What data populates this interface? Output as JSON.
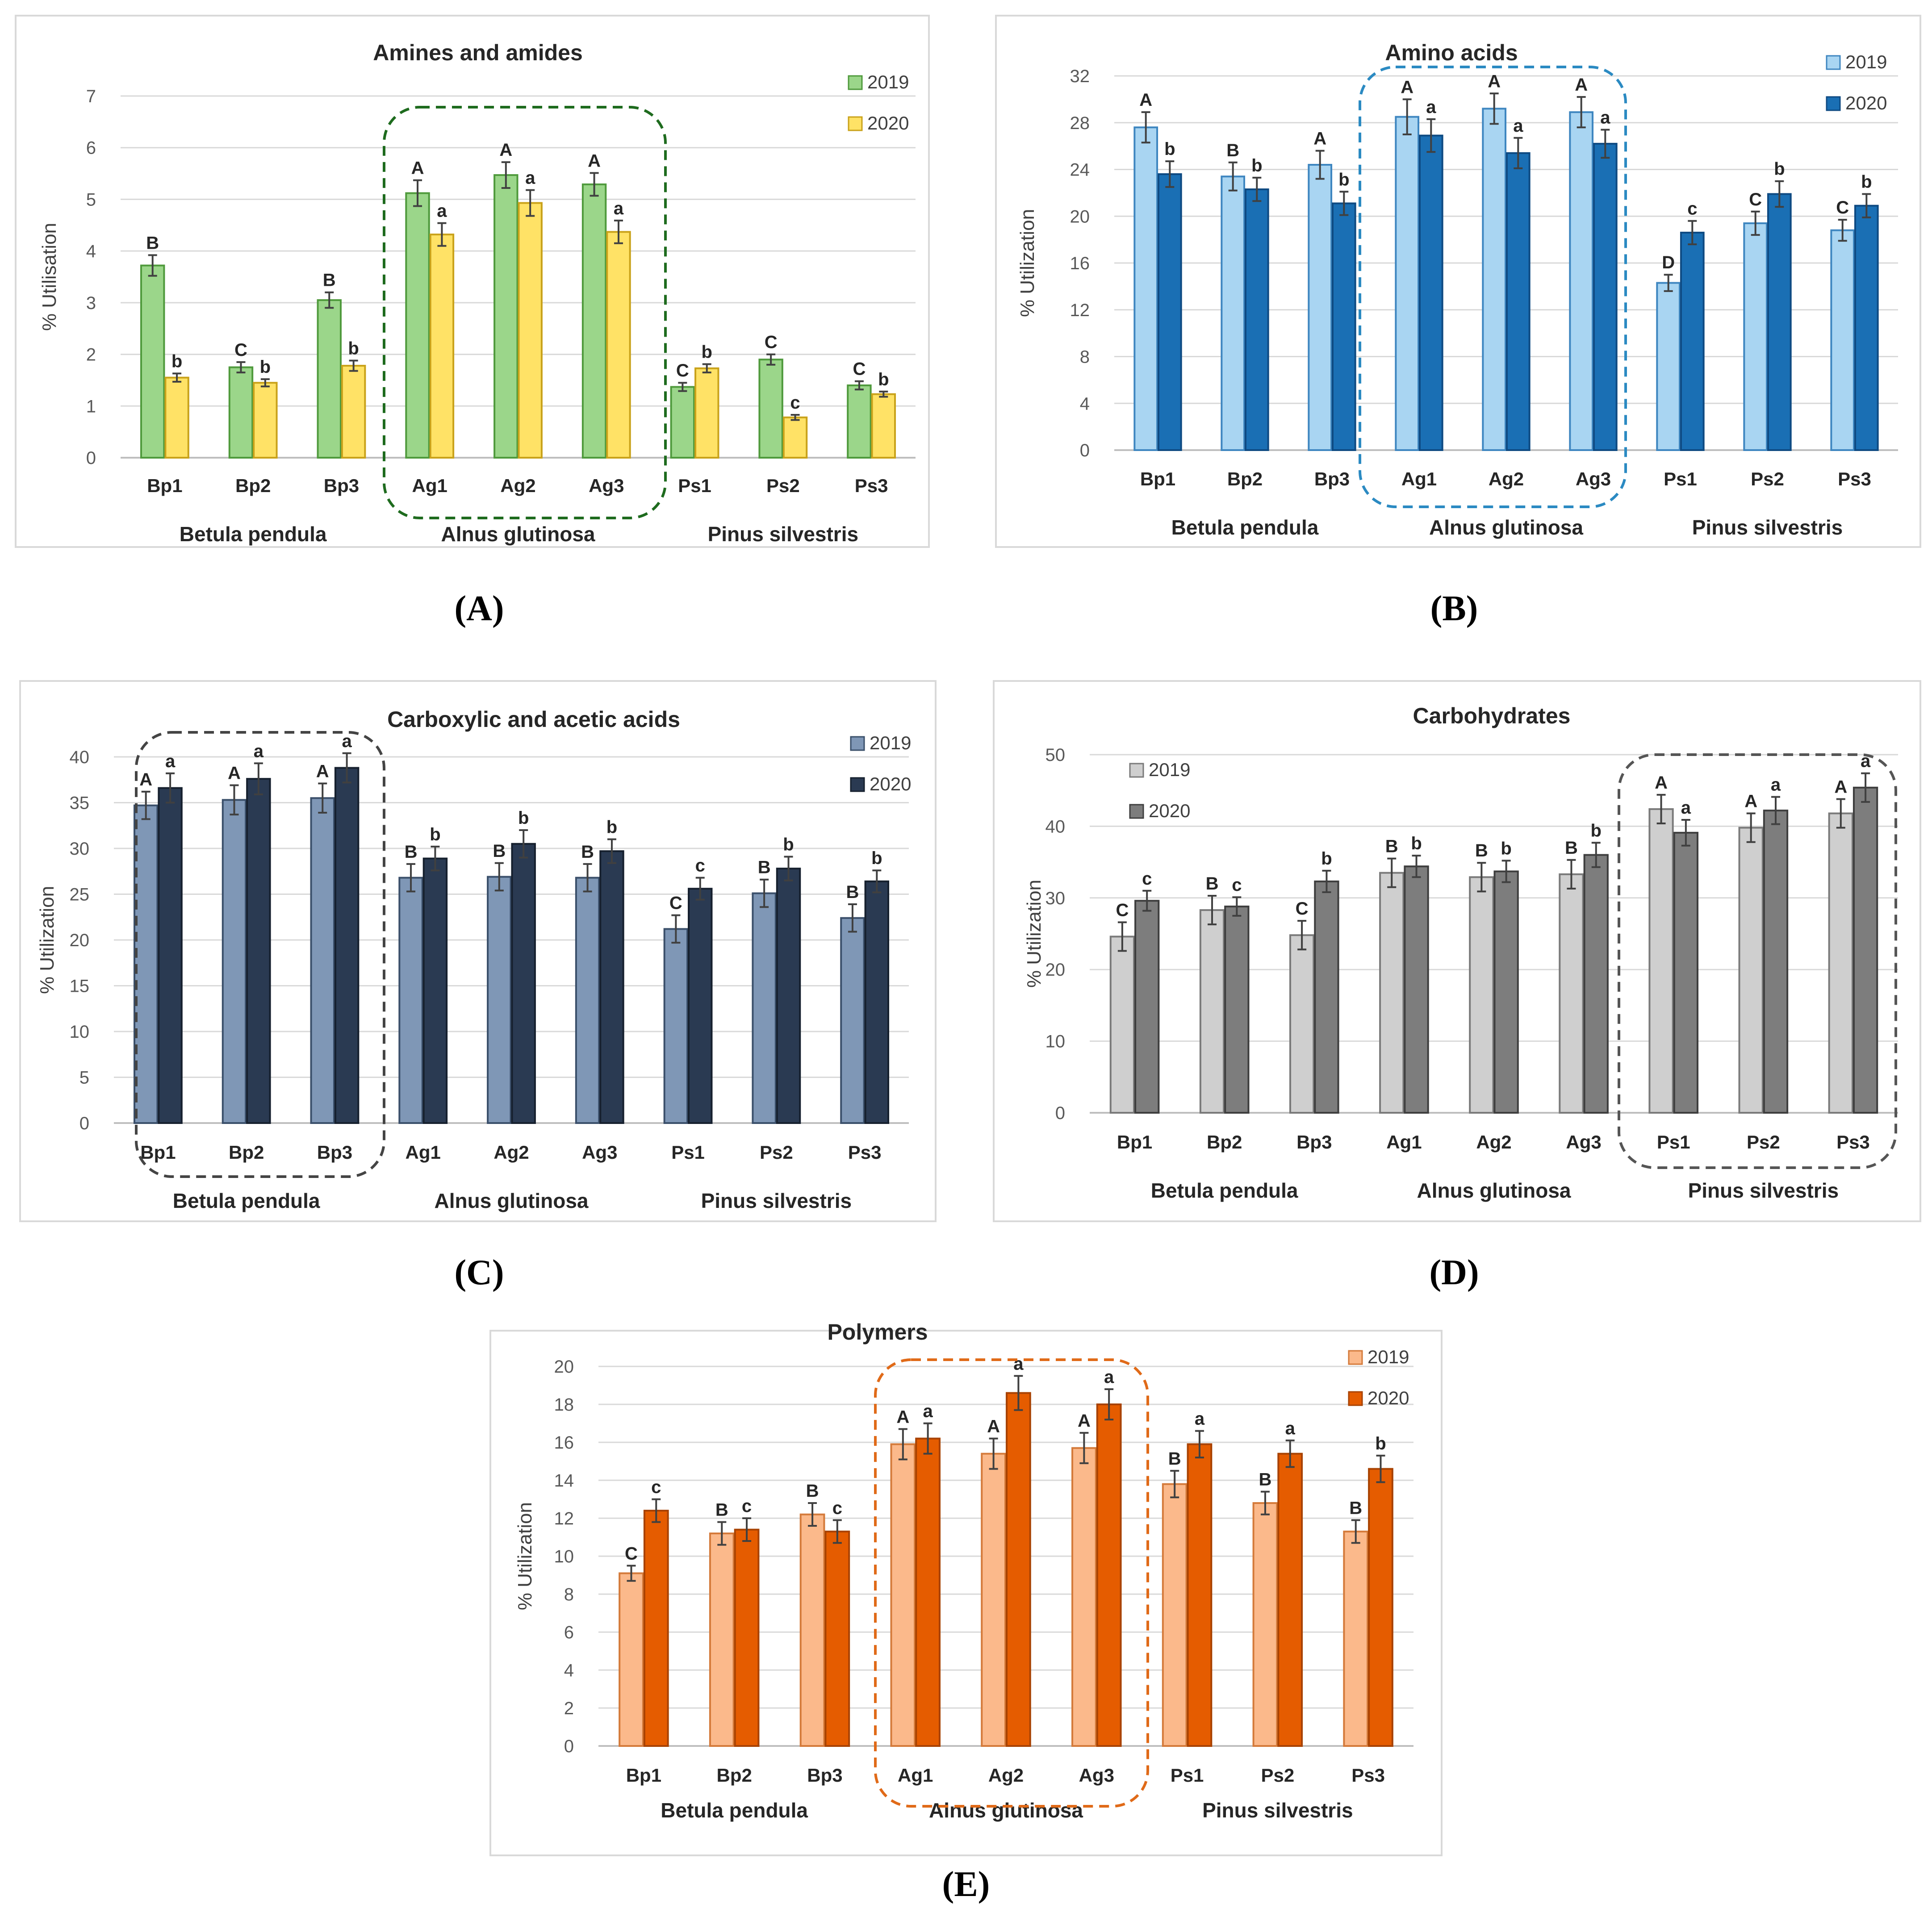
{
  "figure": {
    "panel_labels": [
      "(A)",
      "(B)",
      "(C)",
      "(D)",
      "(E)"
    ]
  },
  "chart_data": [
    {
      "id": "A",
      "type": "bar",
      "title": "Amines and amides",
      "ylabel": "% Utilisation",
      "xlabel": "",
      "ylim": [
        0,
        7
      ],
      "yticks": [
        0,
        1,
        2,
        3,
        4,
        5,
        6,
        7
      ],
      "categories": [
        "Bp1",
        "Bp2",
        "Bp3",
        "Ag1",
        "Ag2",
        "Ag3",
        "Ps1",
        "Ps2",
        "Ps3"
      ],
      "groups": [
        "Betula pendula",
        "Alnus glutinosa",
        "Pinus silvestris"
      ],
      "highlight_group": "Alnus glutinosa",
      "highlight_color": "#1e6b1e",
      "legend_position": "top-right",
      "series": [
        {
          "name": "2019",
          "color": "#9bd68a",
          "edge": "#4f9a3c",
          "values": [
            3.72,
            1.75,
            3.05,
            5.12,
            5.47,
            5.29,
            1.37,
            1.9,
            1.4
          ],
          "errors": [
            0.2,
            0.1,
            0.15,
            0.25,
            0.25,
            0.22,
            0.08,
            0.1,
            0.08
          ],
          "letters": [
            "B",
            "C",
            "B",
            "A",
            "A",
            "A",
            "C",
            "C",
            "C"
          ]
        },
        {
          "name": "2020",
          "color": "#ffe266",
          "edge": "#c9a21a",
          "values": [
            1.55,
            1.45,
            1.78,
            4.32,
            4.93,
            4.37,
            1.73,
            0.78,
            1.23
          ],
          "errors": [
            0.08,
            0.07,
            0.1,
            0.22,
            0.25,
            0.22,
            0.08,
            0.05,
            0.05
          ],
          "letters": [
            "b",
            "b",
            "b",
            "a",
            "a",
            "a",
            "b",
            "c",
            "b"
          ]
        }
      ]
    },
    {
      "id": "B",
      "type": "bar",
      "title": "Amino acids",
      "ylabel": "% Utilization",
      "xlabel": "",
      "ylim": [
        0,
        32
      ],
      "yticks": [
        0,
        4,
        8,
        12,
        16,
        20,
        24,
        28,
        32
      ],
      "categories": [
        "Bp1",
        "Bp2",
        "Bp3",
        "Ag1",
        "Ag2",
        "Ag3",
        "Ps1",
        "Ps2",
        "Ps3"
      ],
      "groups": [
        "Betula pendula",
        "Alnus glutinosa",
        "Pinus silvestris"
      ],
      "highlight_group": "Alnus glutinosa",
      "highlight_color": "#2b8ac2",
      "legend_position": "top-right",
      "series": [
        {
          "name": "2019",
          "color": "#a9d5f2",
          "edge": "#3e86c0",
          "values": [
            27.6,
            23.4,
            24.4,
            28.5,
            29.2,
            28.9,
            14.3,
            19.4,
            18.8
          ],
          "errors": [
            1.3,
            1.2,
            1.2,
            1.5,
            1.3,
            1.3,
            0.7,
            1.0,
            0.9
          ],
          "letters": [
            "A",
            "B",
            "A",
            "A",
            "A",
            "A",
            "D",
            "C",
            "C"
          ]
        },
        {
          "name": "2020",
          "color": "#1a6fb4",
          "edge": "#0e4a82",
          "values": [
            23.6,
            22.3,
            21.1,
            26.9,
            25.4,
            26.2,
            18.6,
            21.9,
            20.9
          ],
          "errors": [
            1.1,
            1.0,
            1.0,
            1.4,
            1.3,
            1.2,
            1.0,
            1.1,
            1.0
          ],
          "letters": [
            "b",
            "b",
            "b",
            "a",
            "a",
            "a",
            "c",
            "b",
            "b"
          ]
        }
      ]
    },
    {
      "id": "C",
      "type": "bar",
      "title": "Carboxylic and acetic acids",
      "ylabel": "% Utilization",
      "xlabel": "",
      "ylim": [
        0,
        40
      ],
      "yticks": [
        0,
        5,
        10,
        15,
        20,
        25,
        30,
        35,
        40
      ],
      "categories": [
        "Bp1",
        "Bp2",
        "Bp3",
        "Ag1",
        "Ag2",
        "Ag3",
        "Ps1",
        "Ps2",
        "Ps3"
      ],
      "groups": [
        "Betula pendula",
        "Alnus glutinosa",
        "Pinus silvestris"
      ],
      "highlight_group": "Betula pendula",
      "highlight_color": "#444444",
      "legend_position": "top-right",
      "series": [
        {
          "name": "2019",
          "color": "#7f97b6",
          "edge": "#3a4f6a",
          "values": [
            34.7,
            35.3,
            35.5,
            26.8,
            26.9,
            26.8,
            21.2,
            25.1,
            22.4
          ],
          "errors": [
            1.5,
            1.6,
            1.6,
            1.5,
            1.5,
            1.5,
            1.5,
            1.5,
            1.5
          ],
          "letters": [
            "A",
            "A",
            "A",
            "B",
            "B",
            "B",
            "C",
            "B",
            "B"
          ]
        },
        {
          "name": "2020",
          "color": "#2a3a52",
          "edge": "#16202e",
          "values": [
            36.6,
            37.6,
            38.8,
            28.9,
            30.5,
            29.7,
            25.6,
            27.8,
            26.4
          ],
          "errors": [
            1.6,
            1.7,
            1.6,
            1.3,
            1.5,
            1.3,
            1.2,
            1.3,
            1.2
          ],
          "letters": [
            "a",
            "a",
            "a",
            "b",
            "b",
            "b",
            "c",
            "b",
            "b"
          ]
        }
      ]
    },
    {
      "id": "D",
      "type": "bar",
      "title": "Carbohydrates",
      "ylabel": "% Utilization",
      "xlabel": "",
      "ylim": [
        0,
        50
      ],
      "yticks": [
        0,
        10,
        20,
        30,
        40,
        50
      ],
      "categories": [
        "Bp1",
        "Bp2",
        "Bp3",
        "Ag1",
        "Ag2",
        "Ag3",
        "Ps1",
        "Ps2",
        "Ps3"
      ],
      "groups": [
        "Betula pendula",
        "Alnus glutinosa",
        "Pinus silvestris"
      ],
      "highlight_group": "Pinus silvestris",
      "highlight_color": "#555555",
      "legend_position": "top-left",
      "series": [
        {
          "name": "2019",
          "color": "#cfcfcf",
          "edge": "#7a7a7a",
          "values": [
            24.6,
            28.3,
            24.8,
            33.5,
            32.9,
            33.3,
            42.4,
            39.8,
            41.8
          ],
          "errors": [
            2.0,
            2.0,
            2.0,
            2.0,
            2.0,
            2.0,
            2.0,
            2.0,
            2.0
          ],
          "letters": [
            "C",
            "B",
            "C",
            "B",
            "B",
            "B",
            "A",
            "A",
            "A"
          ]
        },
        {
          "name": "2020",
          "color": "#7d7d7d",
          "edge": "#3e3e3e",
          "values": [
            29.6,
            28.8,
            32.3,
            34.4,
            33.7,
            36.0,
            39.1,
            42.2,
            45.4
          ],
          "errors": [
            1.4,
            1.3,
            1.5,
            1.5,
            1.5,
            1.7,
            1.8,
            1.9,
            2.0
          ],
          "letters": [
            "c",
            "c",
            "b",
            "b",
            "b",
            "b",
            "a",
            "a",
            "a"
          ]
        }
      ]
    },
    {
      "id": "E",
      "type": "bar",
      "title": "Polymers",
      "ylabel": "% Utilization",
      "xlabel": "",
      "ylim": [
        0,
        20
      ],
      "yticks": [
        0,
        2,
        4,
        6,
        8,
        10,
        12,
        14,
        16,
        18,
        20
      ],
      "categories": [
        "Bp1",
        "Bp2",
        "Bp3",
        "Ag1",
        "Ag2",
        "Ag3",
        "Ps1",
        "Ps2",
        "Ps3"
      ],
      "groups": [
        "Betula pendula",
        "Alnus glutinosa",
        "Pinus silvestris"
      ],
      "highlight_group": "Alnus glutinosa",
      "highlight_color": "#e06a18",
      "legend_position": "top-right",
      "series": [
        {
          "name": "2019",
          "color": "#fbb98b",
          "edge": "#d47a3a",
          "values": [
            9.1,
            11.2,
            12.2,
            15.9,
            15.4,
            15.7,
            13.8,
            12.8,
            11.3
          ],
          "errors": [
            0.4,
            0.6,
            0.6,
            0.8,
            0.8,
            0.8,
            0.7,
            0.6,
            0.6
          ],
          "letters": [
            "C",
            "B",
            "B",
            "A",
            "A",
            "A",
            "B",
            "B",
            "B"
          ]
        },
        {
          "name": "2020",
          "color": "#e55c00",
          "edge": "#a84200",
          "values": [
            12.4,
            11.4,
            11.3,
            16.2,
            18.6,
            18.0,
            15.9,
            15.4,
            14.6
          ],
          "errors": [
            0.6,
            0.6,
            0.6,
            0.8,
            0.9,
            0.8,
            0.7,
            0.7,
            0.7
          ],
          "letters": [
            "c",
            "c",
            "c",
            "a",
            "a",
            "a",
            "a",
            "a",
            "b"
          ]
        }
      ]
    }
  ]
}
